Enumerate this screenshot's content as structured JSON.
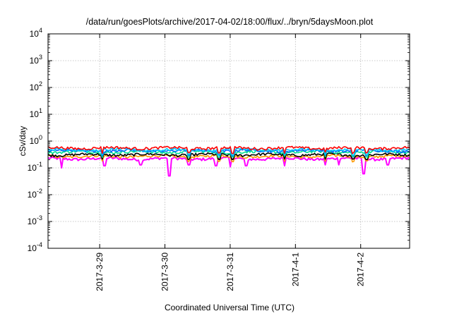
{
  "chart_data": {
    "type": "line",
    "title": "/data/run/goesPlots/archive/2017-04-02/18:00/flux/../bryn/5daysMoon.plot",
    "xlabel": "Coordinated Universal Time (UTC)",
    "ylabel": "cSv/day",
    "yscale": "log",
    "ylim": [
      0.0001,
      10000
    ],
    "y_ticks": [
      {
        "value": 0.0001,
        "base": "10",
        "exp": "-4"
      },
      {
        "value": 0.001,
        "base": "10",
        "exp": "-3"
      },
      {
        "value": 0.01,
        "base": "10",
        "exp": "-2"
      },
      {
        "value": 0.1,
        "base": "10",
        "exp": "-1"
      },
      {
        "value": 1,
        "base": "10",
        "exp": "0"
      },
      {
        "value": 10,
        "base": "10",
        "exp": "1"
      },
      {
        "value": 100,
        "base": "10",
        "exp": "2"
      },
      {
        "value": 1000,
        "base": "10",
        "exp": "3"
      },
      {
        "value": 10000,
        "base": "10",
        "exp": "4"
      }
    ],
    "xlim": [
      "2017-03-28T05:00",
      "2017-04-02T18:00"
    ],
    "x_ticks": [
      {
        "value": "2017-03-29T00:00",
        "label": "2017-3-29"
      },
      {
        "value": "2017-03-30T00:00",
        "label": "2017-3-30"
      },
      {
        "value": "2017-03-31T00:00",
        "label": "2017-3-31"
      },
      {
        "value": "2017-04-01T00:00",
        "label": "2017-4-1"
      },
      {
        "value": "2017-04-02T00:00",
        "label": "2017-4-2"
      }
    ],
    "grid": true,
    "series": [
      {
        "color": "#ff00ff",
        "base": 0.22,
        "dips": [
          {
            "x": "2017-03-28T10:00",
            "y": 0.1
          },
          {
            "x": "2017-03-29T02:00",
            "y": 0.12
          },
          {
            "x": "2017-03-29T15:00",
            "y": 0.13
          },
          {
            "x": "2017-03-30T01:30",
            "y": 0.05
          },
          {
            "x": "2017-03-30T09:00",
            "y": 0.13
          },
          {
            "x": "2017-03-30T19:00",
            "y": 0.12
          },
          {
            "x": "2017-03-31T00:00",
            "y": 0.11
          },
          {
            "x": "2017-03-31T06:00",
            "y": 0.12
          },
          {
            "x": "2017-03-31T20:00",
            "y": 0.12
          },
          {
            "x": "2017-04-01T11:00",
            "y": 0.13
          },
          {
            "x": "2017-04-01T16:00",
            "y": 0.13
          },
          {
            "x": "2017-04-02T01:00",
            "y": 0.06
          },
          {
            "x": "2017-04-02T10:00",
            "y": 0.13
          }
        ]
      },
      {
        "color": "#ff9900",
        "base": 0.27,
        "dips": []
      },
      {
        "color": "#000000",
        "base": 0.31,
        "dips": []
      },
      {
        "color": "#00e090",
        "base": 0.39,
        "dips": []
      },
      {
        "color": "#0066ff",
        "base": 0.44,
        "dips": []
      },
      {
        "color": "#00c8ff",
        "base": 0.47,
        "dips": []
      },
      {
        "color": "#ff0000",
        "base": 0.55,
        "dips": []
      }
    ],
    "common_dips": [
      "2017-03-29T01:00",
      "2017-03-30T09:00",
      "2017-03-30T20:00",
      "2017-03-31T01:00",
      "2017-03-31T20:00",
      "2017-04-01T11:00",
      "2017-04-01T21:00",
      "2017-04-02T02:00"
    ]
  }
}
